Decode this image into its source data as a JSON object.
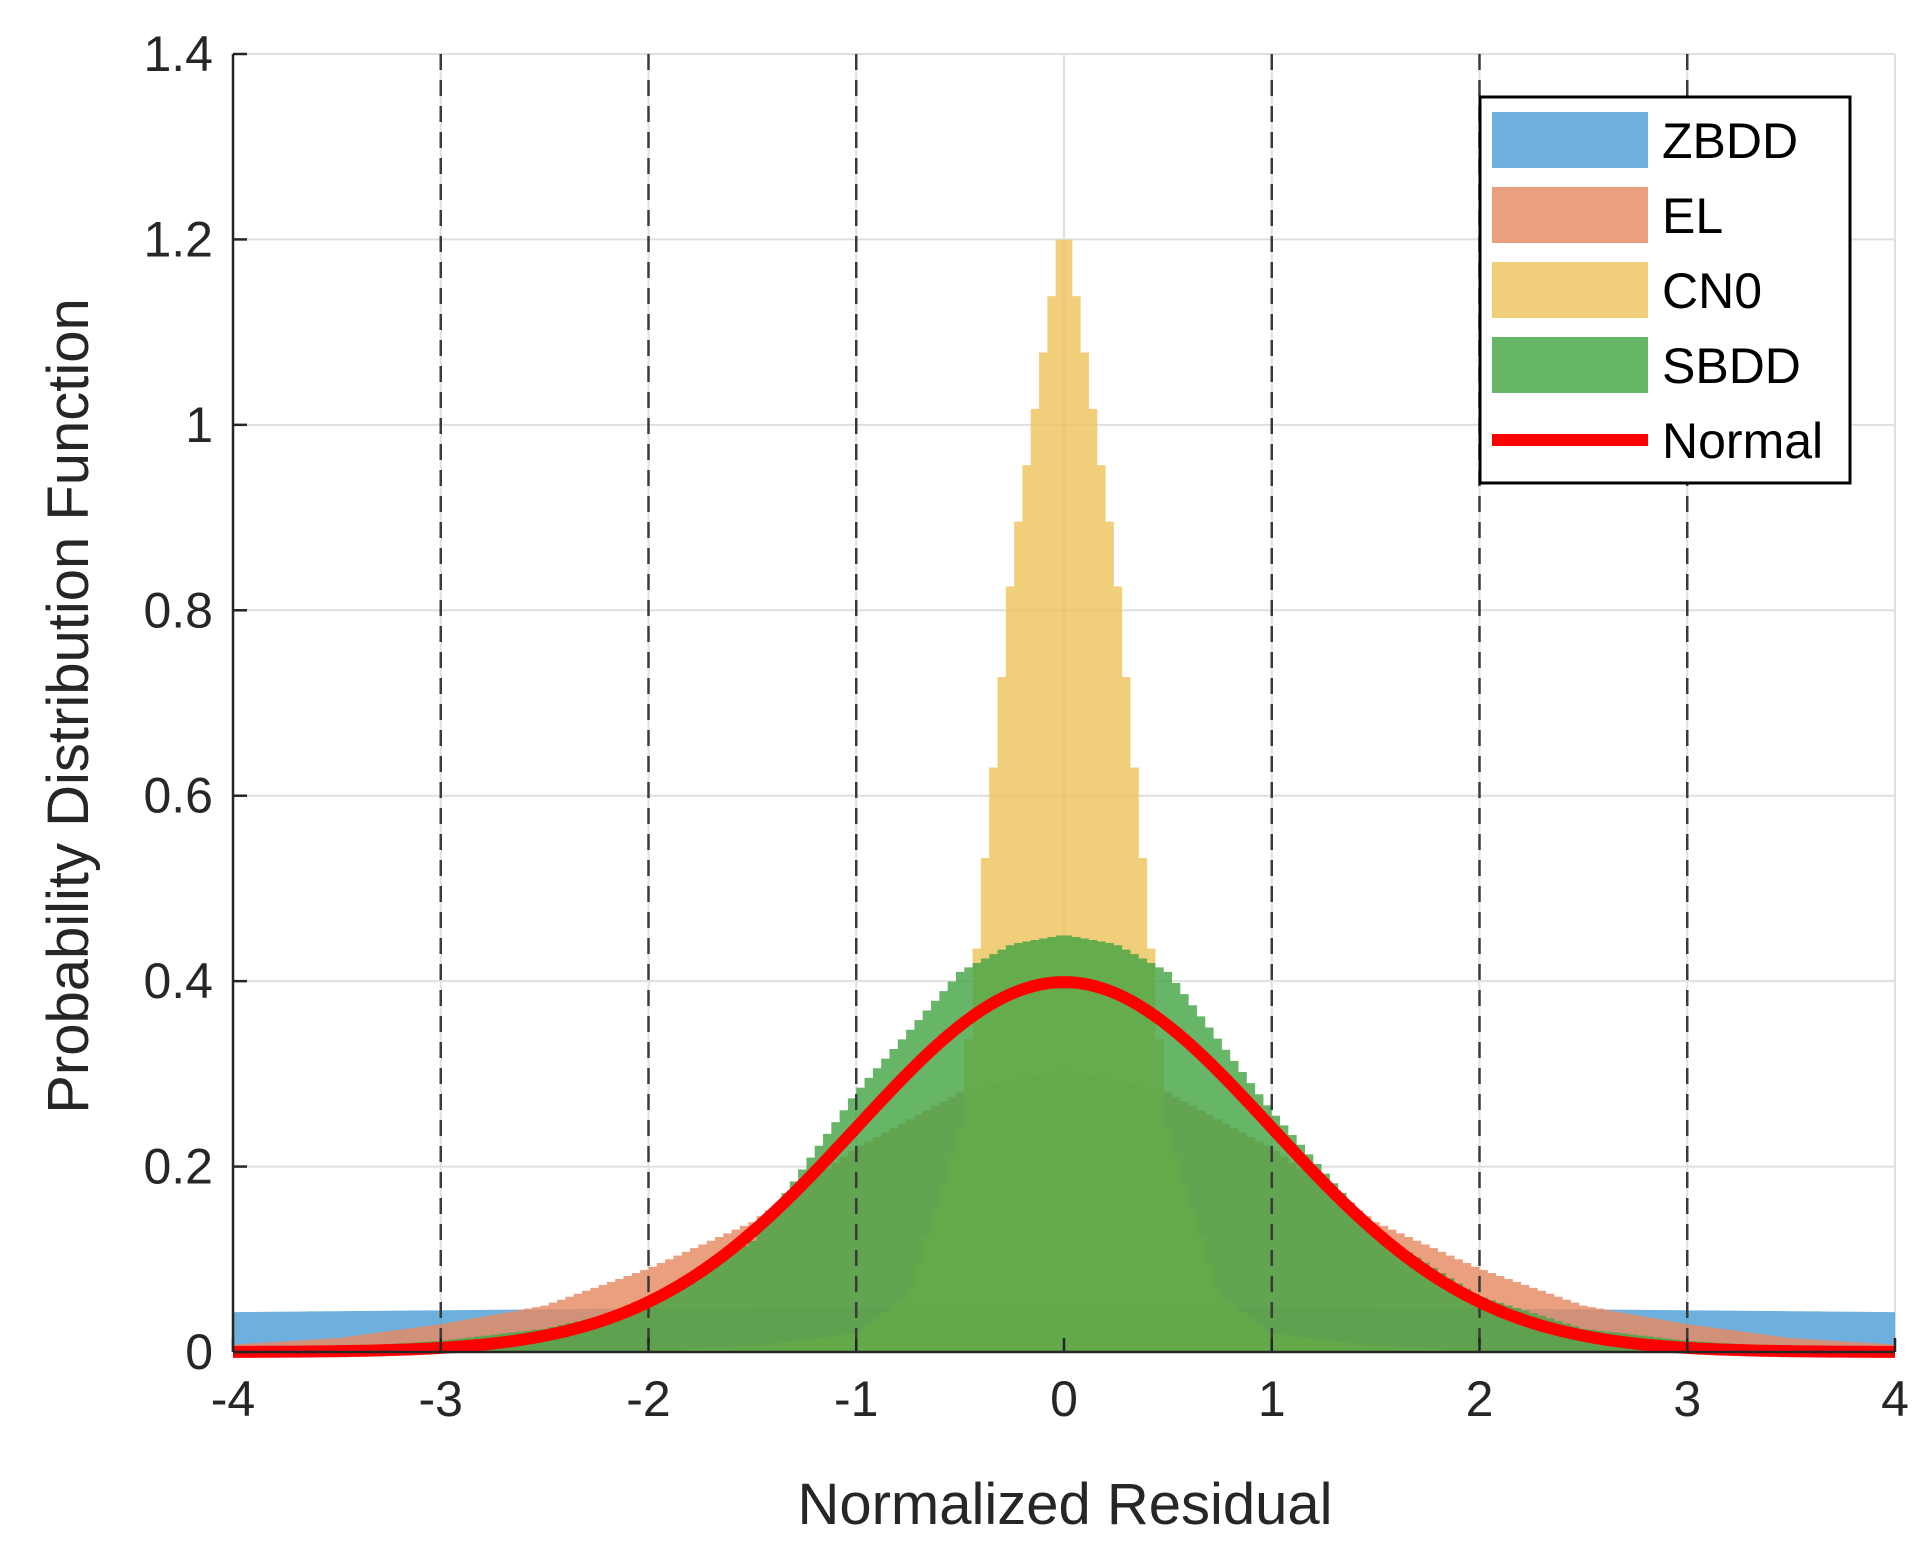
{
  "chart_data": {
    "type": "histogram",
    "title": "",
    "xlabel": "Normalized Residual",
    "ylabel": "Probability Distribution Function",
    "xlim": [
      -4,
      4
    ],
    "ylim": [
      0,
      1.4
    ],
    "xticks": [
      -4,
      -3,
      -2,
      -1,
      0,
      1,
      2,
      3,
      4
    ],
    "xtick_labels": [
      "-4",
      "-3",
      "-2",
      "-1",
      "0",
      "1",
      "2",
      "3",
      "4"
    ],
    "yticks": [
      0,
      0.2,
      0.4,
      0.6,
      0.8,
      1,
      1.2,
      1.4
    ],
    "ytick_labels": [
      "0",
      "0.2",
      "0.4",
      "0.6",
      "0.8",
      "1",
      "1.2",
      "1.4"
    ],
    "grid": true,
    "sigma_reference_lines": [
      -3,
      -2,
      -1,
      1,
      2,
      3
    ],
    "legend_position": "top-right",
    "series": [
      {
        "name": "ZBDD",
        "kind": "histogram",
        "color": "#4d9fd6",
        "x": [
          -4,
          -3,
          -2.5,
          -2,
          -1.5,
          -1,
          -0.5,
          0,
          0.5,
          1,
          1.5,
          2,
          2.5,
          3,
          4
        ],
        "values": [
          0.043,
          0.045,
          0.046,
          0.047,
          0.048,
          0.049,
          0.05,
          0.05,
          0.05,
          0.049,
          0.048,
          0.047,
          0.046,
          0.045,
          0.043
        ]
      },
      {
        "name": "EL",
        "kind": "histogram",
        "color": "#e58a61",
        "x": [
          -4,
          -3.5,
          -3,
          -2.5,
          -2,
          -1.5,
          -1,
          -0.5,
          0,
          0.5,
          1,
          1.5,
          2,
          2.5,
          3,
          3.5,
          4
        ],
        "values": [
          0.008,
          0.015,
          0.03,
          0.05,
          0.09,
          0.14,
          0.22,
          0.28,
          0.305,
          0.28,
          0.22,
          0.14,
          0.09,
          0.05,
          0.03,
          0.015,
          0.008
        ]
      },
      {
        "name": "CN0",
        "kind": "histogram",
        "color": "#eec35c",
        "x": [
          -4,
          -3,
          -2,
          -1.5,
          -1,
          -0.75,
          -0.5,
          -0.25,
          0,
          0.25,
          0.5,
          0.75,
          1,
          1.5,
          2,
          3,
          4
        ],
        "values": [
          0,
          0,
          0.002,
          0.006,
          0.02,
          0.06,
          0.24,
          0.85,
          1.23,
          0.85,
          0.24,
          0.06,
          0.02,
          0.006,
          0.002,
          0,
          0
        ]
      },
      {
        "name": "SBDD",
        "kind": "histogram",
        "color": "#45a545",
        "x": [
          -4,
          -3.5,
          -3,
          -2.5,
          -2,
          -1.5,
          -1,
          -0.5,
          -0.25,
          0,
          0.25,
          0.5,
          1,
          1.5,
          2,
          2.5,
          3,
          3.5,
          4
        ],
        "values": [
          0.002,
          0.005,
          0.012,
          0.025,
          0.05,
          0.12,
          0.28,
          0.41,
          0.44,
          0.45,
          0.44,
          0.41,
          0.26,
          0.13,
          0.06,
          0.025,
          0.012,
          0.005,
          0.002
        ]
      },
      {
        "name": "Normal",
        "kind": "line",
        "color": "#ff0000",
        "mean": 0,
        "std": 1
      }
    ]
  }
}
